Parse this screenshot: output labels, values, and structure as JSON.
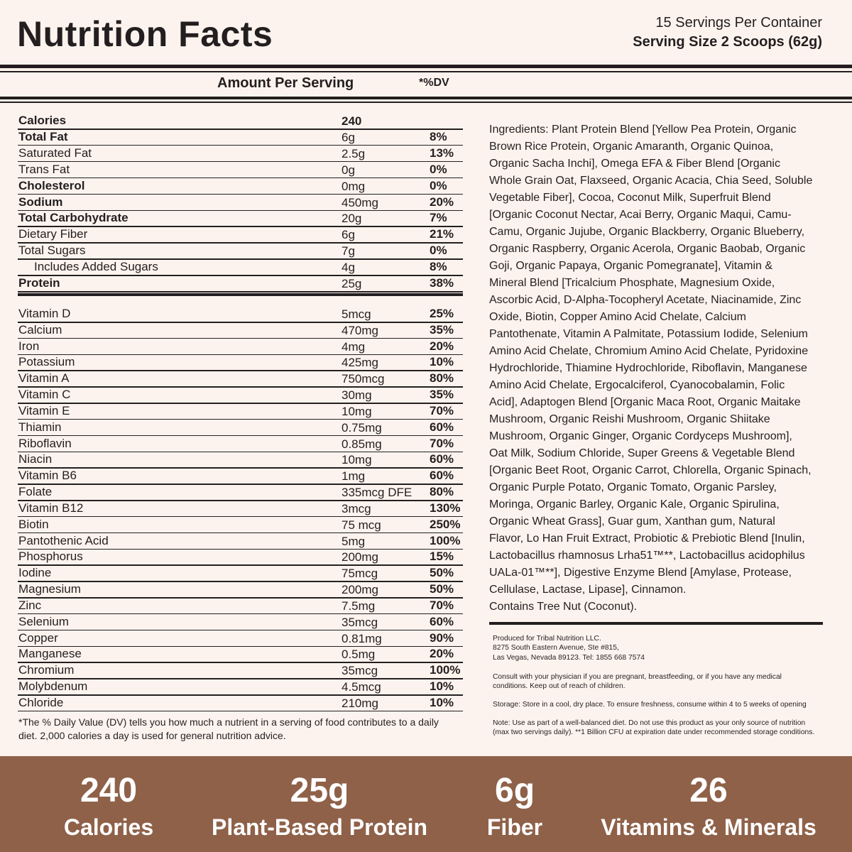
{
  "header": {
    "title": "Nutrition Facts",
    "servings": "15 Servings Per Container",
    "serving_size": "Serving Size 2 Scoops (62g)"
  },
  "table": {
    "amount_header": "Amount Per Serving",
    "dv_header": "*%DV",
    "macros": [
      {
        "name": "Calories",
        "amount": "240",
        "bold": true
      },
      {
        "name": "Total Fat",
        "amount": "6g",
        "dv": "8%",
        "bold": true
      },
      {
        "name": "Saturated Fat",
        "amount": "2.5g",
        "dv": "13%"
      },
      {
        "name": "Trans Fat",
        "amount": "0g",
        "dv": "0%"
      },
      {
        "name": "Cholesterol",
        "amount": "0mg",
        "dv": "0%",
        "bold": true
      },
      {
        "name": "Sodium",
        "amount": "450mg",
        "dv": "20%",
        "bold": true
      },
      {
        "name": "Total Carbohydrate",
        "amount": "20g",
        "dv": "7%",
        "bold": true
      },
      {
        "name": "Dietary Fiber",
        "amount": "6g",
        "dv": "21%"
      },
      {
        "name": "Total Sugars",
        "amount": "7g",
        "dv": "0%"
      },
      {
        "name": "Includes Added Sugars",
        "amount": "4g",
        "dv": "8%",
        "indent": true
      },
      {
        "name": "Protein",
        "amount": "25g",
        "dv": "38%",
        "bold": true
      }
    ],
    "vitamins": [
      {
        "name": "Vitamin D",
        "amount": "5mcg",
        "dv": "25%"
      },
      {
        "name": "Calcium",
        "amount": "470mg",
        "dv": "35%"
      },
      {
        "name": "Iron",
        "amount": "4mg",
        "dv": "20%"
      },
      {
        "name": "Potassium",
        "amount": "425mg",
        "dv": "10%"
      },
      {
        "name": "Vitamin A",
        "amount": "750mcg",
        "dv": "80%"
      },
      {
        "name": "Vitamin C",
        "amount": "30mg",
        "dv": "35%"
      },
      {
        "name": "Vitamin E",
        "amount": "10mg",
        "dv": "70%"
      },
      {
        "name": "Thiamin",
        "amount": "0.75mg",
        "dv": "60%"
      },
      {
        "name": "Riboflavin",
        "amount": "0.85mg",
        "dv": "70%"
      },
      {
        "name": "Niacin",
        "amount": "10mg",
        "dv": "60%"
      },
      {
        "name": "Vitamin B6",
        "amount": "1mg",
        "dv": "60%"
      },
      {
        "name": "Folate",
        "amount": "335mcg DFE",
        "dv": "80%"
      },
      {
        "name": "Vitamin B12",
        "amount": "3mcg",
        "dv": "130%"
      },
      {
        "name": "Biotin",
        "amount": "75 mcg",
        "dv": "250%"
      },
      {
        "name": "Pantothenic Acid",
        "amount": "5mg",
        "dv": "100%"
      },
      {
        "name": "Phosphorus",
        "amount": "200mg",
        "dv": "15%"
      },
      {
        "name": "Iodine",
        "amount": "75mcg",
        "dv": "50%"
      },
      {
        "name": "Magnesium",
        "amount": "200mg",
        "dv": "50%"
      },
      {
        "name": "Zinc",
        "amount": "7.5mg",
        "dv": "70%"
      },
      {
        "name": "Selenium",
        "amount": "35mcg",
        "dv": "60%"
      },
      {
        "name": "Copper",
        "amount": "0.81mg",
        "dv": "90%"
      },
      {
        "name": "Manganese",
        "amount": "0.5mg",
        "dv": "20%"
      },
      {
        "name": "Chromium",
        "amount": "35mcg",
        "dv": "100%"
      },
      {
        "name": "Molybdenum",
        "amount": "4.5mcg",
        "dv": "10%"
      },
      {
        "name": "Chloride",
        "amount": "210mg",
        "dv": "10%"
      }
    ],
    "footnote": [
      "*The % Daily Value (DV) tells you how much a nutrient in a serving of food contributes to a daily",
      "diet. 2,000 calories a day is used for general nutrition advice."
    ]
  },
  "ingredients": {
    "lines": [
      "Ingredients: Plant Protein Blend [Yellow Pea Protein, Organic",
      "Brown Rice Protein, Organic Amaranth, Organic Quinoa,",
      "Organic Sacha Inchi], Omega EFA & Fiber Blend [Organic",
      "Whole Grain Oat, Flaxseed, Organic Acacia, Chia Seed, Soluble",
      "Vegetable Fiber], Cocoa, Coconut Milk, Superfruit Blend",
      "[Organic Coconut Nectar, Acai Berry, Organic Maqui, Camu-",
      "Camu, Organic Jujube, Organic Blackberry, Organic Blueberry,",
      "Organic Raspberry, Organic Acerola, Organic Baobab, Organic",
      "Goji, Organic Papaya, Organic Pomegranate], Vitamin &",
      "Mineral Blend [Tricalcium Phosphate, Magnesium Oxide,",
      "Ascorbic Acid, D-Alpha-Tocopheryl Acetate, Niacinamide, Zinc",
      "Oxide, Biotin, Copper Amino Acid Chelate, Calcium",
      "Pantothenate, Vitamin A Palmitate, Potassium Iodide, Selenium",
      "Amino Acid Chelate, Chromium Amino Acid Chelate, Pyridoxine",
      "Hydrochloride, Thiamine Hydrochloride, Riboflavin, Manganese",
      "Amino Acid Chelate, Ergocalciferol, Cyanocobalamin, Folic",
      "Acid], Adaptogen Blend [Organic Maca Root, Organic Maitake",
      "Mushroom, Organic Reishi Mushroom, Organic Shiitake",
      "Mushroom, Organic Ginger, Organic Cordyceps Mushroom],",
      "Oat Milk, Sodium Chloride, Super Greens & Vegetable Blend",
      "[Organic Beet Root, Organic Carrot, Chlorella, Organic Spinach,",
      "Organic Purple Potato, Organic Tomato, Organic Parsley,",
      "Moringa, Organic Barley, Organic Kale, Organic Spirulina,",
      "Organic Wheat Grass], Guar gum, Xanthan gum, Natural",
      "Flavor, Lo Han Fruit Extract, Probiotic & Prebiotic Blend [Inulin,",
      "Lactobacillus rhamnosus Lrha51™**, Lactobacillus acidophilus",
      "UALa-01™**], Digestive Enzyme Blend [Amylase, Protease,",
      "Cellulase, Lactase, Lipase], Cinnamon."
    ],
    "allergen": "Contains Tree Nut (Coconut)."
  },
  "notes": [
    [
      "Produced for Tribal Nutrition LLC.",
      "8275 South Eastern Avenue, Ste #815,",
      "Las Vegas, Nevada 89123. Tel: 1855 668 7574"
    ],
    [
      "Consult with your physician if you are pregnant, breastfeeding, or if you have any medical",
      "conditions. Keep out of reach of children."
    ],
    [
      "Storage: Store in a cool, dry place. To ensure freshness, consume within 4 to 5 weeks of opening"
    ],
    [
      "Note: Use as part of a well-balanced diet. Do not use this product as your only source of nutrition",
      "(max two servings daily). **1 Billion CFU at expiration date under recommended storage conditions."
    ]
  ],
  "stats": [
    {
      "value": "240",
      "label": "Calories"
    },
    {
      "value": "25g",
      "label": "Plant-Based Protein"
    },
    {
      "value": "6g",
      "label": "Fiber"
    },
    {
      "value": "26",
      "label": "Vitamins & Minerals"
    }
  ]
}
